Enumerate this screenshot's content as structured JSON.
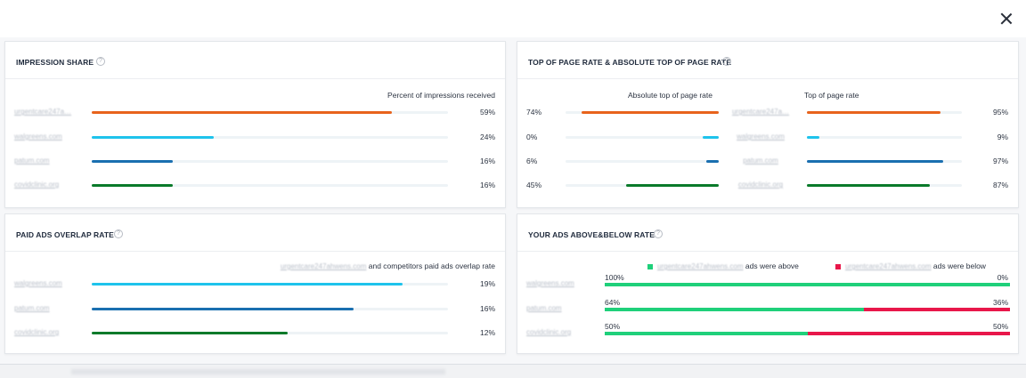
{
  "close_label": "×",
  "impression_share": {
    "title": "IMPRESSION SHARE",
    "caption": "Percent of impressions received",
    "rows": [
      {
        "domain": "urgentcare247a…",
        "percent": "59%",
        "value": 59,
        "color": "#e8631c"
      },
      {
        "domain": "walgreens.com",
        "percent": "24%",
        "value": 24,
        "color": "#1ec3ec"
      },
      {
        "domain": "patum.com",
        "percent": "16%",
        "value": 16,
        "color": "#1a6fb0"
      },
      {
        "domain": "covidclinic.org",
        "percent": "16%",
        "value": 16,
        "color": "#0a7a2a"
      }
    ]
  },
  "top_of_page": {
    "title": "TOP OF PAGE RATE & ABSOLUTE TOP OF PAGE RATE",
    "caption_left": "Absolute top of page rate",
    "caption_right": "Top of page rate",
    "rows": [
      {
        "domain": "urgentcare247a…",
        "abs_percent": "74%",
        "abs_value": 74,
        "top_percent": "95%",
        "top_value": 95,
        "color": "#e8631c"
      },
      {
        "domain": "walgreens.com",
        "abs_percent": "0%",
        "abs_value": 0,
        "top_percent": "9%",
        "top_value": 9,
        "color": "#1ec3ec"
      },
      {
        "domain": "patum.com",
        "abs_percent": "6%",
        "abs_value": 6,
        "top_percent": "97%",
        "top_value": 97,
        "color": "#1a6fb0"
      },
      {
        "domain": "covidclinic.org",
        "abs_percent": "45%",
        "abs_value": 45,
        "top_percent": "87%",
        "top_value": 87,
        "color": "#0a7a2a"
      }
    ]
  },
  "paid_overlap": {
    "title": "PAID ADS OVERLAP RATE",
    "caption_domain": "urgentcare247ahwens.com",
    "caption_text": "and competitors paid ads overlap rate",
    "rows": [
      {
        "domain": "walgreens.com",
        "percent": "19%",
        "value": 19,
        "color": "#1ec3ec"
      },
      {
        "domain": "patum.com",
        "percent": "16%",
        "value": 16,
        "color": "#1a6fb0"
      },
      {
        "domain": "covidclinic.org",
        "percent": "12%",
        "value": 12,
        "color": "#0a7a2a"
      }
    ]
  },
  "above_below": {
    "title": "YOUR ADS ABOVE&BELOW RATE",
    "legend_above_domain": "urgentcare247ahwens.com",
    "legend_above_text": "ads were above",
    "legend_below_domain": "urgentcare247ahwens.com",
    "legend_below_text": "ads were below",
    "above_color": "#1fd07a",
    "below_color": "#e8174a",
    "rows": [
      {
        "domain": "walgreens.com",
        "above_percent": "100%",
        "above_value": 100,
        "below_percent": "0%"
      },
      {
        "domain": "patum.com",
        "above_percent": "64%",
        "above_value": 64,
        "below_percent": "36%"
      },
      {
        "domain": "covidclinic.org",
        "above_percent": "50%",
        "above_value": 50,
        "below_percent": "50%"
      }
    ]
  },
  "help_glyph": "?"
}
